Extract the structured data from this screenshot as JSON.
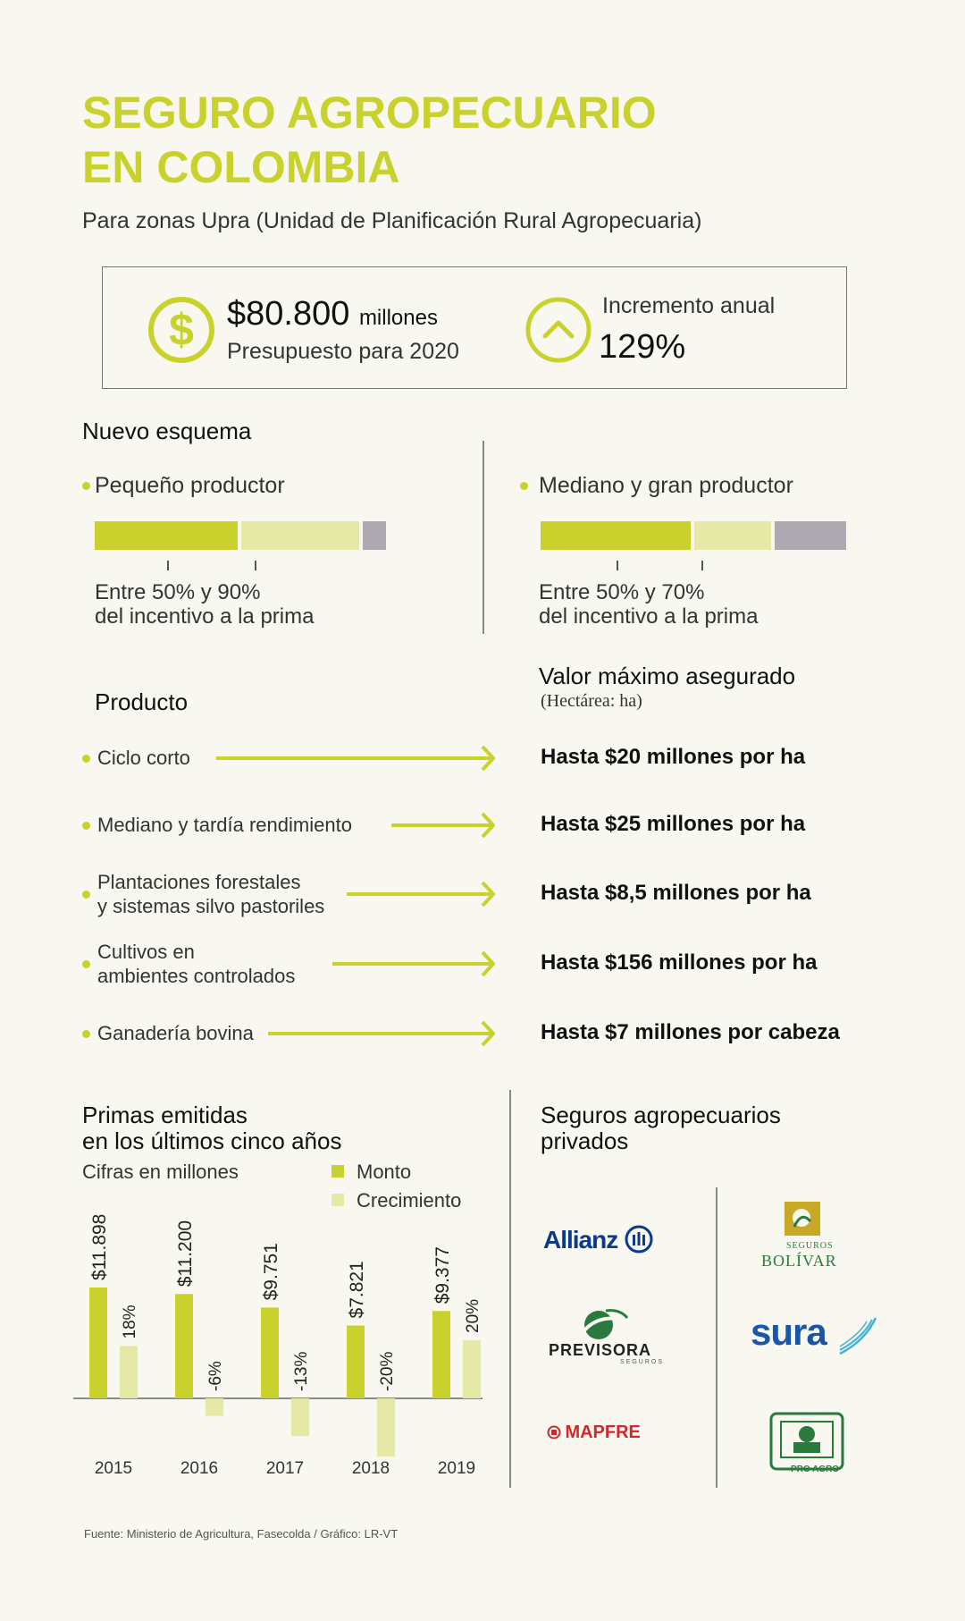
{
  "header": {
    "title_line1": "SEGURO AGROPECUARIO",
    "title_line2": "EN COLOMBIA",
    "subtitle": "Para zonas Upra (Unidad de Planificación Rural Agropecuaria)"
  },
  "kpis": {
    "amount": "$80.800",
    "amount_unit": "millones",
    "budget_label": "Presupuesto para 2020",
    "increase_label": "Incremento anual",
    "increase_value": "129%",
    "dollar_icon": "dollar-icon",
    "up_icon": "chevron-up-icon"
  },
  "scheme": {
    "title": "Nuevo esquema",
    "small": {
      "label": "Pequeño productor",
      "incentive_min": 0.5,
      "incentive_max": 0.9,
      "note_line1": "Entre 50% y 90%",
      "note_line2": "del incentivo a la prima"
    },
    "large": {
      "label": "Mediano y gran productor",
      "incentive_min": 0.5,
      "incentive_max": 0.7,
      "note_line1": "Entre 50% y 70%",
      "note_line2": "del incentivo a la prima"
    }
  },
  "products": {
    "header": "Producto",
    "value_header": "Valor máximo asegurado",
    "value_subheader": "(Hectárea: ha)",
    "items": [
      {
        "line1": "Ciclo corto",
        "line2": "",
        "value": "Hasta $20 millones por ha"
      },
      {
        "line1": "Mediano y tardía rendimiento",
        "line2": "",
        "value": "Hasta $25 millones por ha"
      },
      {
        "line1": "Plantaciones forestales",
        "line2": "y sistemas silvo pastoriles",
        "value": "Hasta $8,5 millones por ha"
      },
      {
        "line1": "Cultivos en",
        "line2": "ambientes controlados",
        "value": "Hasta $156 millones por ha"
      },
      {
        "line1": "Ganadería bovina",
        "line2": "",
        "value": "Hasta $7 millones por cabeza"
      }
    ]
  },
  "primas": {
    "title_line1": "Primas emitidas",
    "title_line2": "en los últimos cinco años",
    "units": "Cifras en millones"
  },
  "chart_data": {
    "type": "bar",
    "title": "Primas emitidas en los últimos cinco años",
    "categories": [
      "2015",
      "2016",
      "2017",
      "2018",
      "2019"
    ],
    "series": [
      {
        "name": "Monto",
        "values": [
          11898,
          11200,
          9751,
          7821,
          9377
        ],
        "labels": [
          "$11.898",
          "$11.200",
          "$9.751",
          "$7.821",
          "$9.377"
        ],
        "color": "#c9d22d"
      },
      {
        "name": "Crecimiento",
        "values": [
          18,
          -6,
          -13,
          -20,
          20
        ],
        "labels": [
          "18%",
          "-6%",
          "-13%",
          "-20%",
          "20%"
        ],
        "color": "#e6e8a6"
      }
    ],
    "legend": "top-right"
  },
  "insurers": {
    "title_line1": "Seguros agropecuarios",
    "title_line2": "privados",
    "left": [
      "Allianz",
      "PREVISORA",
      "MAPFRE"
    ],
    "previsora_sub": "SEGUROS",
    "right": [
      "BOLÍVAR",
      "sura",
      "PRO AGRO"
    ],
    "bolivar_sub": "SEGUROS"
  },
  "source": "Fuente:  Ministerio de Agricultura, Fasecolda / Gráfico: LR-VT",
  "colors": {
    "accent": "#c9d22d",
    "accent_light": "#e6e8a6",
    "gray": "#aeaab2",
    "background": "#f8f7f0"
  }
}
